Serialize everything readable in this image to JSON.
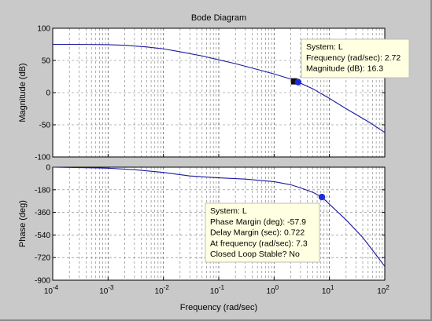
{
  "chart_data": {
    "type": "line",
    "title": "Bode Diagram",
    "xlabel": "Frequency  (rad/sec)",
    "x_scale": "log",
    "xlim": [
      0.0001,
      100
    ],
    "x_tick_labels": [
      {
        "base": "10",
        "exp": "-4"
      },
      {
        "base": "10",
        "exp": "-3"
      },
      {
        "base": "10",
        "exp": "-2"
      },
      {
        "base": "10",
        "exp": "-1"
      },
      {
        "base": "10",
        "exp": "0"
      },
      {
        "base": "10",
        "exp": "1"
      },
      {
        "base": "10",
        "exp": "2"
      }
    ],
    "grid": true,
    "colors": {
      "background": "#c9c9c9",
      "plot_bg": "#ffffff",
      "line": "#1a1aa0",
      "marker": "#1f2ad8",
      "datatip_bg": "#ffffe1",
      "datatip_border": "#bdbdbd"
    },
    "subplots": [
      {
        "name": "magnitude",
        "ylabel": "Magnitude (dB)",
        "ylim": [
          -100,
          100
        ],
        "yticks": [
          100,
          50,
          0,
          -50,
          -100
        ],
        "series": [
          {
            "x": [
              0.0001,
              0.0003,
              0.001,
              0.002,
              0.005,
              0.01,
              0.02,
              0.05,
              0.1,
              0.2,
              0.5,
              1,
              2,
              2.72,
              5,
              10,
              20,
              50,
              100
            ],
            "y": [
              75,
              75,
              74.5,
              73.5,
              71,
              68,
              63.5,
              57,
              51,
              45,
              36,
              29,
              21,
              16.3,
              6,
              -9,
              -25,
              -45,
              -62
            ]
          }
        ]
      },
      {
        "name": "phase",
        "ylabel": "Phase (deg)",
        "ylim": [
          -900,
          0
        ],
        "yticks": [
          0,
          -180,
          -360,
          -540,
          -720,
          -900
        ],
        "series": [
          {
            "x": [
              0.0001,
              0.001,
              0.003,
              0.01,
              0.03,
              0.1,
              0.3,
              1,
              2,
              3,
              5,
              7.3,
              10,
              20,
              40,
              70,
              100
            ],
            "y": [
              0,
              -8,
              -20,
              -42,
              -70,
              -85,
              -95,
              -115,
              -140,
              -165,
              -200,
              -237.9,
              -295,
              -420,
              -560,
              -700,
              -790
            ]
          }
        ]
      }
    ],
    "markers": [
      {
        "subplot": "magnitude",
        "x": 2.3,
        "y": 17.5,
        "shape": "square"
      },
      {
        "subplot": "magnitude",
        "x": 2.72,
        "y": 16.3,
        "shape": "circle"
      },
      {
        "subplot": "phase",
        "x": 7.3,
        "y": -237.9,
        "shape": "circle"
      }
    ],
    "datatips": [
      {
        "subplot": "magnitude",
        "lines": [
          "System: L",
          "Frequency (rad/sec): 2.72",
          "Magnitude (dB): 16.3"
        ]
      },
      {
        "subplot": "phase",
        "lines": [
          "System: L",
          "Phase Margin (deg): -57.9",
          "Delay Margin (sec): 0.722",
          "At frequency (rad/sec): 7.3",
          "Closed Loop Stable? No"
        ]
      }
    ]
  }
}
